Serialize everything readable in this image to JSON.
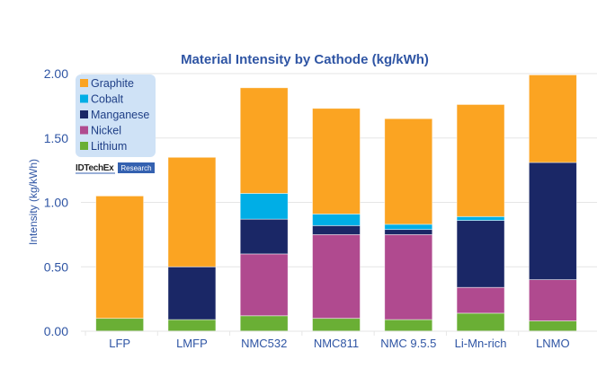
{
  "chart_data": {
    "type": "bar",
    "stacked": true,
    "title": "Material Intensity by Cathode (kg/kWh)",
    "xlabel": "",
    "ylabel": "Intensity (kg/kWh)",
    "ylim": [
      0,
      2.0
    ],
    "yticks": [
      0,
      0.5,
      1.0,
      1.5,
      2.0
    ],
    "ytick_labels": [
      "0.00",
      "0.50",
      "1.00",
      "1.50",
      "2.00"
    ],
    "grid": true,
    "legend_position": "top-left",
    "categories": [
      "LFP",
      "LMFP",
      "NMC532",
      "NMC811",
      "NMC 9.5.5",
      "Li-Mn-rich",
      "LNMO"
    ],
    "series": [
      {
        "name": "Lithium",
        "color": "#6aaf35",
        "values": [
          0.1,
          0.09,
          0.12,
          0.1,
          0.09,
          0.14,
          0.08
        ]
      },
      {
        "name": "Nickel",
        "color": "#b04a8f",
        "values": [
          0.0,
          0.0,
          0.48,
          0.65,
          0.66,
          0.2,
          0.32
        ]
      },
      {
        "name": "Manganese",
        "color": "#1a2766",
        "values": [
          0.0,
          0.41,
          0.27,
          0.07,
          0.04,
          0.52,
          0.91
        ]
      },
      {
        "name": "Cobalt",
        "color": "#00aee6",
        "values": [
          0.0,
          0.0,
          0.2,
          0.09,
          0.04,
          0.03,
          0.0
        ]
      },
      {
        "name": "Graphite",
        "color": "#fba422",
        "values": [
          0.95,
          0.85,
          0.82,
          0.82,
          0.82,
          0.87,
          0.68
        ]
      }
    ],
    "legend_order": [
      "Graphite",
      "Cobalt",
      "Manganese",
      "Nickel",
      "Lithium"
    ]
  },
  "branding": {
    "name": "IDTechEx",
    "tag": "Research"
  },
  "colors": {
    "title": "#2f55a4",
    "legend_bg": "#cfe2f6",
    "grid": "#e6e6e6",
    "brand_tag_bg": "#3461b0"
  }
}
